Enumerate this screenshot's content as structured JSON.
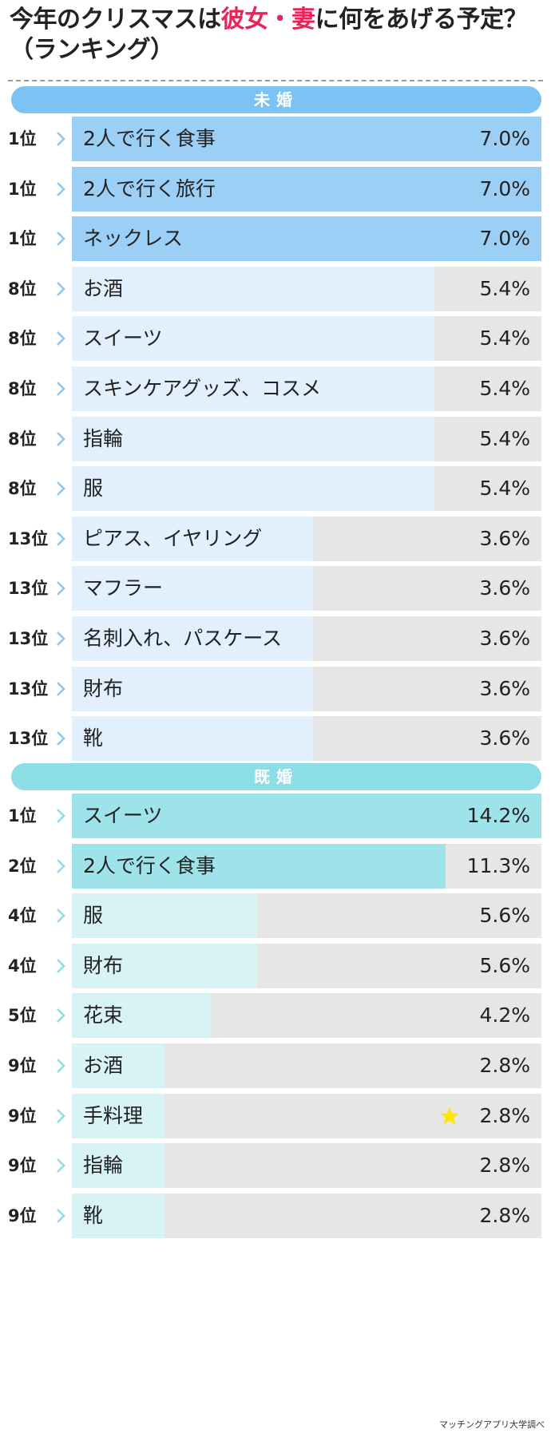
{
  "title": {
    "line1_prefix": "今年のクリスマスは",
    "line1_highlight_a": "彼女",
    "line1_sep": "・",
    "line1_highlight_b": "妻",
    "line1_suffix": "に何をあげる予定？",
    "line2": "（ランキング）"
  },
  "colors": {
    "highlight": "#e8245a",
    "unmarried_header": "#7cc3f3",
    "unmarried_top": "#9ccff6",
    "unmarried_other": "#e1f0fc",
    "married_header": "#8ddde6",
    "married_top": "#9ee2ea",
    "married_other": "#d8f3f6",
    "empty": "#e6e6e6",
    "star": "#ffe600"
  },
  "chart_data": [
    {
      "type": "bar",
      "title": "未婚",
      "unit": "%",
      "xlim": [
        0,
        7.0
      ],
      "rows": [
        {
          "rank": "1位",
          "label": "2人で行く食事",
          "value": 7.0,
          "value_text": "7.0%",
          "top": true
        },
        {
          "rank": "1位",
          "label": "2人で行く旅行",
          "value": 7.0,
          "value_text": "7.0%",
          "top": true
        },
        {
          "rank": "1位",
          "label": "ネックレス",
          "value": 7.0,
          "value_text": "7.0%",
          "top": true
        },
        {
          "rank": "8位",
          "label": "お酒",
          "value": 5.4,
          "value_text": "5.4%"
        },
        {
          "rank": "8位",
          "label": "スイーツ",
          "value": 5.4,
          "value_text": "5.4%"
        },
        {
          "rank": "8位",
          "label": "スキンケアグッズ、コスメ",
          "value": 5.4,
          "value_text": "5.4%"
        },
        {
          "rank": "8位",
          "label": "指輪",
          "value": 5.4,
          "value_text": "5.4%"
        },
        {
          "rank": "8位",
          "label": "服",
          "value": 5.4,
          "value_text": "5.4%"
        },
        {
          "rank": "13位",
          "label": "ピアス、イヤリング",
          "value": 3.6,
          "value_text": "3.6%"
        },
        {
          "rank": "13位",
          "label": "マフラー",
          "value": 3.6,
          "value_text": "3.6%"
        },
        {
          "rank": "13位",
          "label": "名刺入れ、パスケース",
          "value": 3.6,
          "value_text": "3.6%"
        },
        {
          "rank": "13位",
          "label": "財布",
          "value": 3.6,
          "value_text": "3.6%"
        },
        {
          "rank": "13位",
          "label": "靴",
          "value": 3.6,
          "value_text": "3.6%"
        }
      ]
    },
    {
      "type": "bar",
      "title": "既婚",
      "unit": "%",
      "xlim": [
        0,
        14.2
      ],
      "rows": [
        {
          "rank": "1位",
          "label": "スイーツ",
          "value": 14.2,
          "value_text": "14.2%",
          "top": true
        },
        {
          "rank": "2位",
          "label": "2人で行く食事",
          "value": 11.3,
          "value_text": "11.3%",
          "top": true
        },
        {
          "rank": "4位",
          "label": "服",
          "value": 5.6,
          "value_text": "5.6%"
        },
        {
          "rank": "4位",
          "label": "財布",
          "value": 5.6,
          "value_text": "5.6%"
        },
        {
          "rank": "5位",
          "label": "花束",
          "value": 4.2,
          "value_text": "4.2%"
        },
        {
          "rank": "9位",
          "label": "お酒",
          "value": 2.8,
          "value_text": "2.8%"
        },
        {
          "rank": "9位",
          "label": "手料理",
          "value": 2.8,
          "value_text": "2.8%",
          "star": true
        },
        {
          "rank": "9位",
          "label": "指輪",
          "value": 2.8,
          "value_text": "2.8%"
        },
        {
          "rank": "9位",
          "label": "靴",
          "value": 2.8,
          "value_text": "2.8%"
        }
      ]
    }
  ],
  "credit": "マッチングアプリ大学調べ"
}
